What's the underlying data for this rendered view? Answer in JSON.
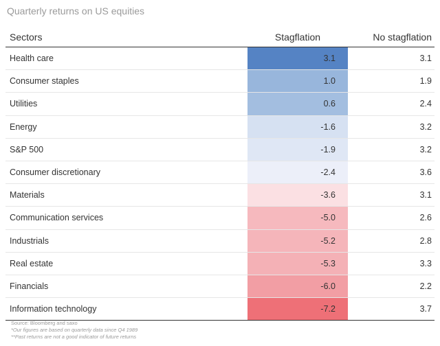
{
  "chart_data": {
    "type": "table",
    "title": "Quarterly returns on US equities",
    "columns": [
      "Sectors",
      "Stagflation",
      "No stagflation"
    ],
    "rows": [
      {
        "sector": "Health care",
        "stagflation": "3.1",
        "no_stagflation": "3.1",
        "color": "#5583c4"
      },
      {
        "sector": "Consumer staples",
        "stagflation": "1.0",
        "no_stagflation": "1.9",
        "color": "#98b6dc"
      },
      {
        "sector": "Utilities",
        "stagflation": "0.6",
        "no_stagflation": "2.4",
        "color": "#a3bee0"
      },
      {
        "sector": "Energy",
        "stagflation": "-1.6",
        "no_stagflation": "3.2",
        "color": "#d6e1f2"
      },
      {
        "sector": "S&P 500",
        "stagflation": "-1.9",
        "no_stagflation": "3.2",
        "color": "#dfe7f5"
      },
      {
        "sector": "Consumer discretionary",
        "stagflation": "-2.4",
        "no_stagflation": "3.6",
        "color": "#eceff9"
      },
      {
        "sector": "Materials",
        "stagflation": "-3.6",
        "no_stagflation": "3.1",
        "color": "#fbe0e3"
      },
      {
        "sector": "Communication services",
        "stagflation": "-5.0",
        "no_stagflation": "2.6",
        "color": "#f6b9be"
      },
      {
        "sector": "Industrials",
        "stagflation": "-5.2",
        "no_stagflation": "2.8",
        "color": "#f5b5ba"
      },
      {
        "sector": "Real estate",
        "stagflation": "-5.3",
        "no_stagflation": "3.3",
        "color": "#f4b1b6"
      },
      {
        "sector": "Financials",
        "stagflation": "-6.0",
        "no_stagflation": "2.2",
        "color": "#f29ea4"
      },
      {
        "sector": "Information technology",
        "stagflation": "-7.2",
        "no_stagflation": "3.7",
        "color": "#ee7077"
      }
    ]
  },
  "notes": {
    "source": "Source: Bloomberg and saxo",
    "note1": "*Our figures are based on quarterly data since Q4 1989",
    "note2": "**Past returns are not a good indicator of future returns"
  }
}
